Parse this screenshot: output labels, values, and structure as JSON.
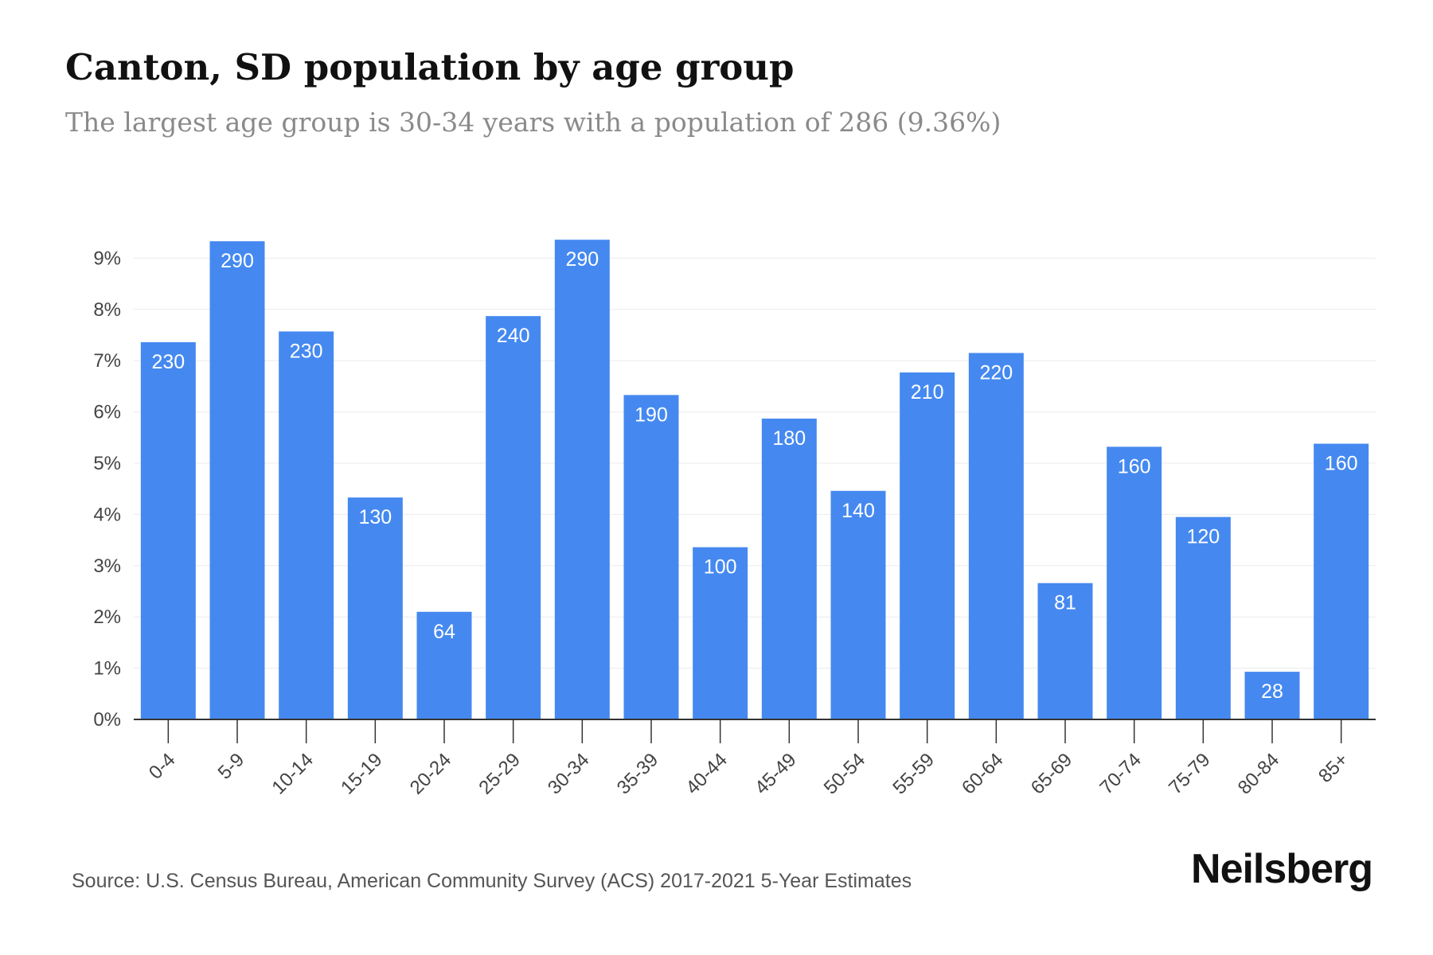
{
  "title": "Canton, SD population by age group",
  "subtitle": "The largest age group is 30-34 years with a population of 286 (9.36%)",
  "source": "Source: U.S. Census Bureau, American Community Survey (ACS) 2017-2021 5-Year Estimates",
  "brand": "Neilsberg",
  "colors": {
    "bar": "#4589f0",
    "grid": "#ebebeb",
    "axis": "#333333",
    "tick_text": "#444444",
    "bar_label": "#ffffff"
  },
  "chart_data": {
    "type": "bar",
    "categories": [
      "0-4",
      "5-9",
      "10-14",
      "15-19",
      "20-24",
      "25-29",
      "30-34",
      "35-39",
      "40-44",
      "45-49",
      "50-54",
      "55-59",
      "60-64",
      "65-69",
      "70-74",
      "75-79",
      "80-84",
      "85+"
    ],
    "values": [
      7.36,
      9.33,
      7.57,
      4.33,
      2.1,
      7.87,
      9.36,
      6.33,
      3.36,
      5.87,
      4.46,
      6.77,
      7.15,
      2.66,
      5.32,
      3.95,
      0.93,
      5.38
    ],
    "data_labels": [
      "230",
      "290",
      "230",
      "130",
      "64",
      "240",
      "290",
      "190",
      "100",
      "180",
      "140",
      "210",
      "220",
      "81",
      "160",
      "120",
      "28",
      "160"
    ],
    "y_ticks": [
      "0%",
      "1%",
      "2%",
      "3%",
      "4%",
      "5%",
      "6%",
      "7%",
      "8%",
      "9%"
    ],
    "ylim": [
      0,
      9.5
    ],
    "xlabel": "",
    "ylabel": "",
    "grid": true,
    "legend": "none"
  }
}
